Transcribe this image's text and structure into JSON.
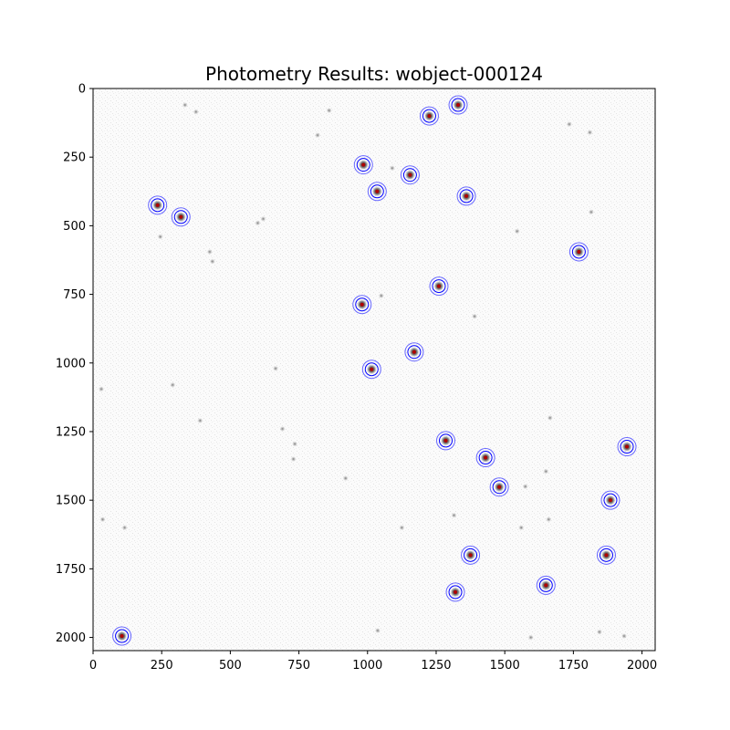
{
  "chart_data": {
    "type": "scatter",
    "title": "Photometry Results: wobject-000124",
    "xlabel": "",
    "ylabel": "",
    "xlim": [
      0,
      2048
    ],
    "ylim": [
      2048,
      0
    ],
    "y_axis_inverted": true,
    "x_ticks": [
      0,
      250,
      500,
      750,
      1000,
      1250,
      1500,
      1750,
      2000
    ],
    "y_ticks": [
      0,
      250,
      500,
      750,
      1000,
      1250,
      1500,
      1750,
      2000
    ],
    "x_tick_labels": [
      "0",
      "250",
      "500",
      "750",
      "1000",
      "1250",
      "1500",
      "1750",
      "2000"
    ],
    "y_tick_labels": [
      "0",
      "250",
      "500",
      "750",
      "1000",
      "1250",
      "1500",
      "1750",
      "2000"
    ],
    "grid": false,
    "background": "grayscale star-field image",
    "aperture_color": "#0000ff",
    "annulus_color": "#6666ff",
    "source_marker_color": "#b00000",
    "detected_sources": [
      {
        "x": 1330,
        "y": 60
      },
      {
        "x": 1225,
        "y": 100
      },
      {
        "x": 985,
        "y": 278
      },
      {
        "x": 1155,
        "y": 315
      },
      {
        "x": 1035,
        "y": 375
      },
      {
        "x": 1360,
        "y": 392
      },
      {
        "x": 235,
        "y": 425
      },
      {
        "x": 320,
        "y": 468
      },
      {
        "x": 1770,
        "y": 595
      },
      {
        "x": 1260,
        "y": 720
      },
      {
        "x": 980,
        "y": 787
      },
      {
        "x": 1170,
        "y": 960
      },
      {
        "x": 1015,
        "y": 1023
      },
      {
        "x": 1285,
        "y": 1283
      },
      {
        "x": 1945,
        "y": 1305
      },
      {
        "x": 1430,
        "y": 1345
      },
      {
        "x": 1480,
        "y": 1452
      },
      {
        "x": 1885,
        "y": 1500
      },
      {
        "x": 1375,
        "y": 1700
      },
      {
        "x": 1870,
        "y": 1700
      },
      {
        "x": 1650,
        "y": 1810
      },
      {
        "x": 1320,
        "y": 1835
      },
      {
        "x": 105,
        "y": 1995
      }
    ],
    "background_sources": [
      {
        "x": 1090,
        "y": 290
      },
      {
        "x": 1735,
        "y": 130
      },
      {
        "x": 1810,
        "y": 160
      },
      {
        "x": 335,
        "y": 60
      },
      {
        "x": 375,
        "y": 85
      },
      {
        "x": 818,
        "y": 170
      },
      {
        "x": 860,
        "y": 80
      },
      {
        "x": 620,
        "y": 475
      },
      {
        "x": 600,
        "y": 490
      },
      {
        "x": 425,
        "y": 595
      },
      {
        "x": 435,
        "y": 630
      },
      {
        "x": 245,
        "y": 540
      },
      {
        "x": 1545,
        "y": 520
      },
      {
        "x": 1815,
        "y": 450
      },
      {
        "x": 1050,
        "y": 755
      },
      {
        "x": 1390,
        "y": 830
      },
      {
        "x": 665,
        "y": 1020
      },
      {
        "x": 30,
        "y": 1095
      },
      {
        "x": 290,
        "y": 1080
      },
      {
        "x": 1665,
        "y": 1200
      },
      {
        "x": 390,
        "y": 1210
      },
      {
        "x": 690,
        "y": 1240
      },
      {
        "x": 735,
        "y": 1295
      },
      {
        "x": 730,
        "y": 1350
      },
      {
        "x": 920,
        "y": 1420
      },
      {
        "x": 1650,
        "y": 1395
      },
      {
        "x": 1575,
        "y": 1450
      },
      {
        "x": 35,
        "y": 1570
      },
      {
        "x": 115,
        "y": 1600
      },
      {
        "x": 1125,
        "y": 1600
      },
      {
        "x": 1315,
        "y": 1555
      },
      {
        "x": 1560,
        "y": 1600
      },
      {
        "x": 1037,
        "y": 1975
      },
      {
        "x": 1595,
        "y": 2000
      },
      {
        "x": 1660,
        "y": 1570
      },
      {
        "x": 1935,
        "y": 1995
      },
      {
        "x": 1845,
        "y": 1980
      }
    ]
  }
}
